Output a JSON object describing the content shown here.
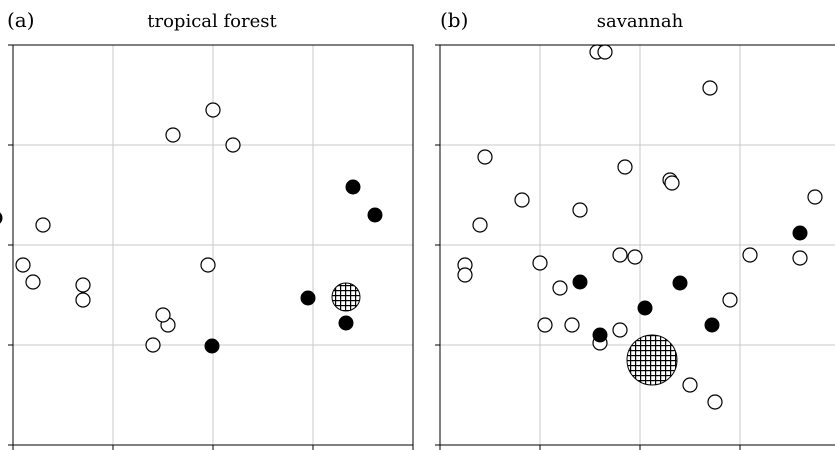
{
  "chart_data": [
    {
      "type": "scatter",
      "panel_label": "(a)",
      "title": "tropical forest",
      "xlim": [
        0,
        4
      ],
      "ylim": [
        0,
        4
      ],
      "grid": true,
      "open_points": [
        [
          2.0,
          3.35
        ],
        [
          1.6,
          3.1
        ],
        [
          0.3,
          2.2
        ],
        [
          0.1,
          1.8
        ],
        [
          0.2,
          1.63
        ],
        [
          0.7,
          1.6
        ],
        [
          0.7,
          1.45
        ],
        [
          1.55,
          1.2
        ],
        [
          1.95,
          1.8
        ],
        [
          1.5,
          1.3
        ],
        [
          1.4,
          1.0
        ],
        [
          2.2,
          3.0
        ]
      ],
      "filled_points": [
        [
          -0.18,
          2.27
        ],
        [
          1.99,
          0.99
        ],
        [
          2.95,
          1.47
        ],
        [
          3.33,
          1.22
        ],
        [
          3.4,
          2.58
        ],
        [
          3.62,
          2.3
        ]
      ],
      "highlight_point": [
        3.33,
        1.48
      ]
    },
    {
      "type": "scatter",
      "panel_label": "(b)",
      "title": "savannah",
      "xlim": [
        0,
        4
      ],
      "ylim": [
        0,
        4
      ],
      "grid": true,
      "open_points": [
        [
          1.57,
          3.93
        ],
        [
          1.65,
          3.93
        ],
        [
          2.7,
          3.57
        ],
        [
          0.45,
          2.88
        ],
        [
          1.85,
          2.78
        ],
        [
          2.3,
          2.65
        ],
        [
          2.32,
          2.62
        ],
        [
          3.75,
          2.48
        ],
        [
          0.82,
          2.45
        ],
        [
          1.4,
          2.35
        ],
        [
          0.4,
          2.2
        ],
        [
          1.8,
          1.9
        ],
        [
          1.95,
          1.88
        ],
        [
          1.0,
          1.82
        ],
        [
          0.25,
          1.8
        ],
        [
          0.25,
          1.7
        ],
        [
          1.2,
          1.57
        ],
        [
          3.1,
          1.9
        ],
        [
          3.6,
          1.87
        ],
        [
          2.9,
          1.45
        ],
        [
          1.05,
          1.2
        ],
        [
          1.32,
          1.2
        ],
        [
          1.8,
          1.15
        ],
        [
          1.6,
          1.02
        ],
        [
          2.5,
          0.6
        ],
        [
          2.75,
          0.43
        ]
      ],
      "filled_points": [
        [
          1.4,
          1.63
        ],
        [
          2.05,
          1.37
        ],
        [
          2.4,
          1.62
        ],
        [
          1.6,
          1.1
        ],
        [
          2.72,
          1.2
        ],
        [
          3.6,
          2.12
        ]
      ],
      "highlight_point": [
        2.12,
        0.85
      ]
    }
  ]
}
